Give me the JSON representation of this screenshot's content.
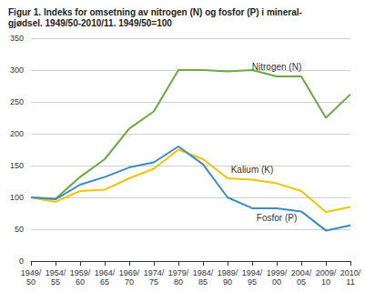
{
  "chart_data": {
    "type": "line",
    "title": "Figur 1. Indeks for omsetning av nitrogen (N) og fosfor (P) i mineral-\ngjødsel. 1949/50-2010/11. 1949/50=100",
    "categories": [
      "1949/50",
      "1954/55",
      "1959/60",
      "1964/65",
      "1969/70",
      "1974/75",
      "1979/80",
      "1984/85",
      "1989/90",
      "1994/95",
      "1999/00",
      "2004/05",
      "2009/10",
      "2010/11"
    ],
    "series": [
      {
        "name": "Nitrogen (N)",
        "color": "#6aaa3e",
        "values": [
          100,
          98,
          132,
          160,
          208,
          235,
          300,
          300,
          298,
          300,
          290,
          290,
          225,
          262
        ]
      },
      {
        "name": "Kalium (K)",
        "color": "#f5c400",
        "values": [
          100,
          93,
          110,
          112,
          130,
          145,
          175,
          160,
          130,
          128,
          122,
          110,
          77,
          85
        ]
      },
      {
        "name": "Fosfor (P)",
        "color": "#3a8cc4",
        "values": [
          100,
          97,
          120,
          132,
          147,
          155,
          180,
          152,
          100,
          83,
          83,
          78,
          48,
          56
        ]
      }
    ],
    "ylim": [
      0,
      350
    ],
    "yticks": [
      0,
      50,
      100,
      150,
      200,
      250,
      300,
      350
    ],
    "grid": true
  }
}
